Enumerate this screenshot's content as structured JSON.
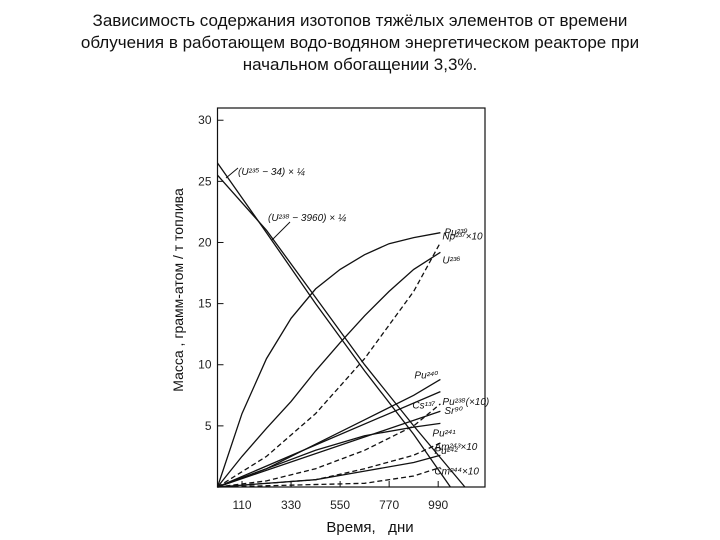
{
  "chart_data": {
    "type": "line",
    "title": [
      "Зависимость содержания изотопов тяжёлых элементов от времени",
      "облучения в работающем водо-водяном энергетическом реакторе при",
      "начальном  обогащении 3,3%."
    ],
    "x_label": "Время,   дни",
    "y_label": "Масса , грамм-атом / т топлива",
    "xlim": [
      0,
      1200
    ],
    "xticks": [
      110,
      330,
      550,
      770,
      990
    ],
    "ylim": [
      0,
      31
    ],
    "yticks": [
      5,
      10,
      15,
      20,
      25,
      30
    ],
    "series": [
      {
        "name": "(U²³⁵ − 34) × ¼",
        "color": "#111111",
        "dashed": false,
        "x": [
          0,
          220,
          440,
          660,
          880,
          1045
        ],
        "values": [
          26.5,
          20.8,
          15.0,
          9.5,
          4.3,
          0
        ]
      },
      {
        "name": "(U²³⁸ − 3960) × ¼",
        "color": "#111111",
        "dashed": false,
        "x": [
          0,
          220,
          440,
          660,
          880,
          1110
        ],
        "values": [
          25.5,
          21.0,
          15.5,
          10.0,
          5.0,
          0
        ]
      },
      {
        "name": "Pu²³⁹",
        "color": "#111111",
        "dashed": false,
        "x": [
          0,
          110,
          220,
          330,
          440,
          550,
          660,
          770,
          880,
          1000
        ],
        "values": [
          0,
          6.0,
          10.5,
          13.8,
          16.2,
          17.8,
          19.0,
          19.9,
          20.4,
          20.8
        ]
      },
      {
        "name": "Np²³⁷×10",
        "color": "#111111",
        "dashed": true,
        "x": [
          0,
          220,
          440,
          660,
          880,
          1000
        ],
        "values": [
          0,
          2.5,
          6.0,
          10.5,
          16.0,
          20.0
        ]
      },
      {
        "name": "U²³⁶",
        "color": "#111111",
        "dashed": false,
        "x": [
          0,
          110,
          220,
          330,
          440,
          550,
          660,
          770,
          880,
          1000
        ],
        "values": [
          0,
          2.5,
          4.8,
          7.0,
          9.5,
          11.8,
          14.0,
          16.0,
          17.8,
          19.2
        ]
      },
      {
        "name": "Pu²⁴⁰",
        "color": "#111111",
        "dashed": false,
        "x": [
          0,
          220,
          440,
          660,
          880,
          1000
        ],
        "values": [
          0,
          1.5,
          3.5,
          5.5,
          7.5,
          8.8
        ]
      },
      {
        "name": "Cs¹³⁷",
        "color": "#111111",
        "dashed": false,
        "x": [
          0,
          1000
        ],
        "values": [
          0,
          7.8
        ]
      },
      {
        "name": "Pu²³⁸(×10)",
        "color": "#111111",
        "dashed": true,
        "x": [
          0,
          220,
          440,
          660,
          880,
          1000
        ],
        "values": [
          0,
          0.5,
          1.5,
          3.0,
          5.0,
          6.8
        ]
      },
      {
        "name": "Sr⁹⁰",
        "color": "#111111",
        "dashed": false,
        "x": [
          0,
          1000
        ],
        "values": [
          0,
          6.2
        ]
      },
      {
        "name": "Pu²⁴¹",
        "color": "#111111",
        "dashed": false,
        "x": [
          0,
          220,
          440,
          660,
          880,
          1000
        ],
        "values": [
          0,
          1.5,
          3.0,
          4.2,
          4.9,
          5.2
        ]
      },
      {
        "name": "Am²⁴³×10",
        "color": "#111111",
        "dashed": true,
        "x": [
          0,
          440,
          660,
          880,
          1000
        ],
        "values": [
          0,
          0.6,
          1.5,
          2.6,
          3.6
        ]
      },
      {
        "name": "Pu²⁴²",
        "color": "#111111",
        "dashed": false,
        "x": [
          0,
          440,
          660,
          880,
          1000
        ],
        "values": [
          0,
          0.6,
          1.3,
          2.0,
          2.6
        ]
      },
      {
        "name": "Cm²⁴⁴×10",
        "color": "#111111",
        "dashed": true,
        "x": [
          0,
          660,
          880,
          1000
        ],
        "values": [
          0,
          0.3,
          0.9,
          1.6
        ]
      }
    ]
  }
}
